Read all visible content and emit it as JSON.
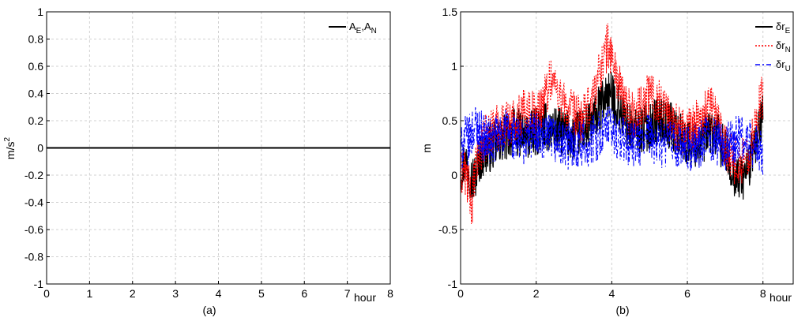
{
  "chart_data": [
    {
      "type": "line",
      "panel_label": "(a)",
      "xlabel": "hour",
      "ylabel": "m/s",
      "ylabel_exponent": "2",
      "xlim": [
        0,
        8
      ],
      "ylim": [
        -1,
        1
      ],
      "xticks": [
        0,
        1,
        2,
        3,
        4,
        5,
        6,
        7,
        8
      ],
      "yticks": [
        -1,
        -0.8,
        -0.6,
        -0.4,
        -0.2,
        0,
        0.2,
        0.4,
        0.6,
        0.8,
        1
      ],
      "grid": true,
      "legend_position": "top-right",
      "series": [
        {
          "name": "A_E,A_N",
          "legend_parts": [
            [
              "A",
              "E"
            ],
            [
              ",A",
              "N"
            ]
          ],
          "color": "#000000",
          "style": "solid",
          "x": [
            0,
            8
          ],
          "y": [
            0,
            0
          ]
        }
      ]
    },
    {
      "type": "line",
      "panel_label": "(b)",
      "xlabel": "hour",
      "ylabel": "m",
      "xlim": [
        0,
        8.8
      ],
      "ylim": [
        -1,
        1.5
      ],
      "xticks": [
        0,
        2,
        4,
        6,
        8
      ],
      "yticks": [
        -1,
        -0.5,
        0,
        0.5,
        1,
        1.5
      ],
      "grid": true,
      "legend_position": "top-right",
      "series": [
        {
          "name": "δr_E",
          "legend_parts": [
            [
              "δr",
              "E"
            ]
          ],
          "color": "#000000",
          "style": "solid",
          "x": [
            0,
            0.1,
            0.2,
            0.3,
            0.4,
            0.5,
            0.6,
            0.8,
            1.0,
            1.2,
            1.4,
            1.6,
            1.8,
            2.0,
            2.2,
            2.4,
            2.6,
            2.8,
            3.0,
            3.2,
            3.4,
            3.6,
            3.8,
            3.9,
            4.0,
            4.2,
            4.4,
            4.6,
            4.8,
            5.0,
            5.2,
            5.4,
            5.6,
            5.8,
            6.0,
            6.2,
            6.4,
            6.6,
            6.8,
            7.0,
            7.2,
            7.4,
            7.6,
            7.8,
            8.0
          ],
          "y": [
            0.05,
            0.12,
            0.1,
            -0.05,
            0.0,
            0.15,
            0.2,
            0.25,
            0.3,
            0.35,
            0.4,
            0.38,
            0.35,
            0.4,
            0.45,
            0.42,
            0.4,
            0.38,
            0.35,
            0.4,
            0.45,
            0.55,
            0.7,
            0.75,
            0.72,
            0.6,
            0.45,
            0.4,
            0.42,
            0.45,
            0.5,
            0.48,
            0.45,
            0.35,
            0.3,
            0.28,
            0.3,
            0.4,
            0.35,
            0.2,
            0.05,
            -0.05,
            0.05,
            0.3,
            0.55
          ]
        },
        {
          "name": "δr_N",
          "legend_parts": [
            [
              "δr",
              "N"
            ]
          ],
          "color": "#ff0000",
          "style": "dotted",
          "x": [
            0,
            0.1,
            0.2,
            0.3,
            0.4,
            0.5,
            0.6,
            0.8,
            1.0,
            1.2,
            1.4,
            1.6,
            1.8,
            2.0,
            2.2,
            2.4,
            2.6,
            2.8,
            3.0,
            3.2,
            3.4,
            3.6,
            3.8,
            3.9,
            4.0,
            4.2,
            4.4,
            4.6,
            4.8,
            5.0,
            5.2,
            5.4,
            5.6,
            5.8,
            6.0,
            6.2,
            6.4,
            6.6,
            6.8,
            7.0,
            7.2,
            7.4,
            7.6,
            7.8,
            8.0
          ],
          "y": [
            0.0,
            0.05,
            -0.1,
            -0.25,
            0.05,
            0.2,
            0.3,
            0.4,
            0.45,
            0.48,
            0.5,
            0.55,
            0.6,
            0.55,
            0.7,
            0.9,
            0.75,
            0.6,
            0.55,
            0.5,
            0.6,
            0.85,
            1.1,
            1.2,
            1.1,
            0.8,
            0.6,
            0.55,
            0.65,
            0.75,
            0.7,
            0.6,
            0.5,
            0.4,
            0.38,
            0.45,
            0.55,
            0.65,
            0.5,
            0.3,
            0.15,
            0.1,
            0.2,
            0.45,
            0.75
          ]
        },
        {
          "name": "δr_U",
          "legend_parts": [
            [
              "δr",
              "U"
            ]
          ],
          "color": "#0000ff",
          "style": "dash-dot",
          "x": [
            0,
            0.1,
            0.2,
            0.3,
            0.4,
            0.5,
            0.6,
            0.8,
            1.0,
            1.2,
            1.4,
            1.6,
            1.8,
            2.0,
            2.2,
            2.4,
            2.6,
            2.8,
            3.0,
            3.2,
            3.4,
            3.6,
            3.8,
            3.9,
            4.0,
            4.2,
            4.4,
            4.6,
            4.8,
            5.0,
            5.2,
            5.4,
            5.6,
            5.8,
            6.0,
            6.2,
            6.4,
            6.6,
            6.8,
            7.0,
            7.2,
            7.4,
            7.6,
            7.8,
            8.0
          ],
          "y": [
            0.2,
            0.35,
            0.3,
            0.4,
            0.45,
            0.4,
            0.35,
            0.3,
            0.35,
            0.4,
            0.35,
            0.3,
            0.35,
            0.4,
            0.3,
            0.35,
            0.3,
            0.25,
            0.3,
            0.28,
            0.3,
            0.35,
            0.4,
            0.45,
            0.4,
            0.35,
            0.3,
            0.28,
            0.3,
            0.35,
            0.3,
            0.28,
            0.3,
            0.25,
            0.22,
            0.25,
            0.3,
            0.35,
            0.3,
            0.25,
            0.3,
            0.35,
            0.3,
            0.25,
            0.2
          ]
        }
      ]
    }
  ]
}
